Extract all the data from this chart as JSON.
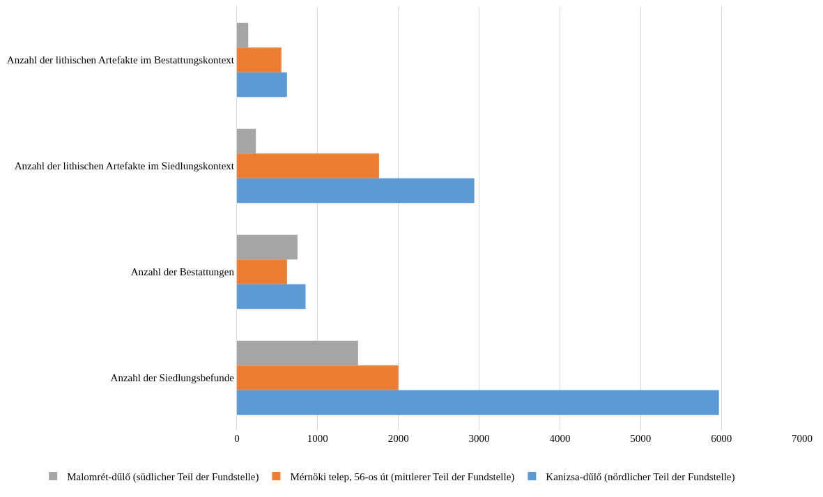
{
  "chart_data": {
    "type": "bar",
    "orientation": "horizontal",
    "categories": [
      "Anzahl der lithischen Artefakte im Bestattungskontext",
      "Anzahl der lithischen Artefakte im Siedlungskontext",
      "Anzahl der Bestattungen",
      "Anzahl der Siedlungsbefunde"
    ],
    "series": [
      {
        "name": "Malomrét-dűlő (südlicher Teil der Fundstelle)",
        "color": "#a5a5a5",
        "values": [
          140,
          235,
          750,
          1500
        ]
      },
      {
        "name": "Mérnöki telep, 56-os út (mittlerer Teil der Fundstelle)",
        "color": "#ed7d31",
        "values": [
          550,
          1760,
          620,
          2000
        ]
      },
      {
        "name": "Kanizsa-dűlő (nördlicher Teil der Fundstelle)",
        "color": "#5b9bd5",
        "values": [
          620,
          2940,
          850,
          5970
        ]
      }
    ],
    "xlim": [
      0,
      7000
    ],
    "xticks": [
      0,
      1000,
      2000,
      3000,
      4000,
      5000,
      6000,
      7000
    ],
    "grid": "x",
    "legend": "bottom"
  }
}
